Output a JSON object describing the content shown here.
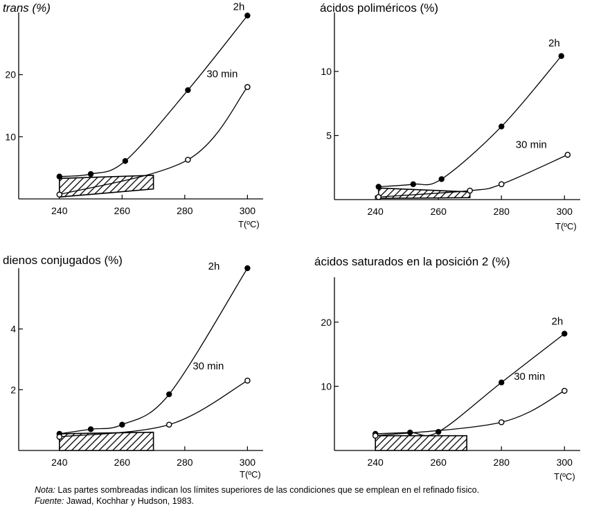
{
  "chart_data": [
    {
      "type": "line",
      "title": "trans (%)",
      "xlabel": "T(ºC)",
      "xlim": [
        227,
        305
      ],
      "ylim": [
        0,
        30
      ],
      "x_ticks": [
        240,
        260,
        280,
        300
      ],
      "y_ticks": [
        10,
        20
      ],
      "shaded_region": {
        "x": [
          240,
          270
        ],
        "y_low": [
          0.3,
          1.6
        ],
        "y_high": [
          3.3,
          3.8
        ]
      },
      "series": [
        {
          "name": "2h",
          "marker": "filled",
          "x": [
            240,
            250,
            261,
            281,
            300
          ],
          "y": [
            3.6,
            4.0,
            6.1,
            17.5,
            29.5
          ]
        },
        {
          "name": "30 min",
          "marker": "open",
          "x": [
            240,
            281,
            300
          ],
          "y": [
            0.7,
            6.3,
            18.0
          ]
        }
      ]
    },
    {
      "type": "line",
      "title": "ácidos poliméricos (%)",
      "xlabel": "T(ºC)",
      "xlim": [
        227,
        305
      ],
      "ylim": [
        0,
        14.6
      ],
      "x_ticks": [
        240,
        260,
        280,
        300
      ],
      "y_ticks": [
        5,
        10
      ],
      "shaded_region": {
        "x": [
          241,
          270
        ],
        "y_low": [
          0.1,
          0.15
        ],
        "y_high": [
          0.9,
          0.6
        ]
      },
      "series": [
        {
          "name": "2h",
          "marker": "filled",
          "x": [
            241,
            252,
            261,
            280,
            299
          ],
          "y": [
            1.0,
            1.2,
            1.6,
            5.7,
            11.2
          ]
        },
        {
          "name": "30 min",
          "marker": "open",
          "x": [
            241,
            270,
            280,
            301
          ],
          "y": [
            0.2,
            0.7,
            1.2,
            3.5
          ]
        }
      ]
    },
    {
      "type": "line",
      "title": "dienos conjugados (%)",
      "xlabel": "T(ºC)",
      "xlim": [
        227,
        305
      ],
      "ylim": [
        0,
        6
      ],
      "x_ticks": [
        240,
        260,
        280,
        300
      ],
      "y_ticks": [
        2,
        4
      ],
      "shaded_region": {
        "x": [
          240,
          270
        ],
        "y_low": [
          0,
          0
        ],
        "y_high": [
          0.55,
          0.6
        ]
      },
      "series": [
        {
          "name": "2h",
          "marker": "filled",
          "x": [
            240,
            250,
            260,
            275,
            300
          ],
          "y": [
            0.55,
            0.7,
            0.85,
            1.85,
            6.0
          ]
        },
        {
          "name": "30 min",
          "marker": "open",
          "x": [
            240,
            275,
            300
          ],
          "y": [
            0.45,
            0.85,
            2.3
          ]
        }
      ]
    },
    {
      "type": "line",
      "title": "ácidos saturados en la posición 2 (%)",
      "xlabel": "T(ºC)",
      "xlim": [
        227,
        305
      ],
      "ylim": [
        0,
        27
      ],
      "x_ticks": [
        240,
        260,
        280,
        300
      ],
      "y_ticks": [
        10,
        20
      ],
      "shaded_region": {
        "x": [
          240,
          269
        ],
        "y_low": [
          0,
          0
        ],
        "y_high": [
          2.3,
          2.3
        ]
      },
      "series": [
        {
          "name": "2h",
          "marker": "filled",
          "x": [
            240,
            251,
            260,
            280,
            300
          ],
          "y": [
            2.6,
            2.8,
            2.9,
            10.6,
            18.2
          ]
        },
        {
          "name": "30 min",
          "marker": "open",
          "x": [
            240,
            280,
            300
          ],
          "y": [
            2.3,
            4.4,
            9.3
          ]
        }
      ]
    }
  ],
  "notes": {
    "nota_label": "Nota:",
    "nota_text": " Las partes sombreadas indican los límites superiores de las condiciones que se emplean en el refinado físico.",
    "fuente_label": "Fuente:",
    "fuente_text": " Jawad, Kochhar y Hudson, 1983."
  }
}
